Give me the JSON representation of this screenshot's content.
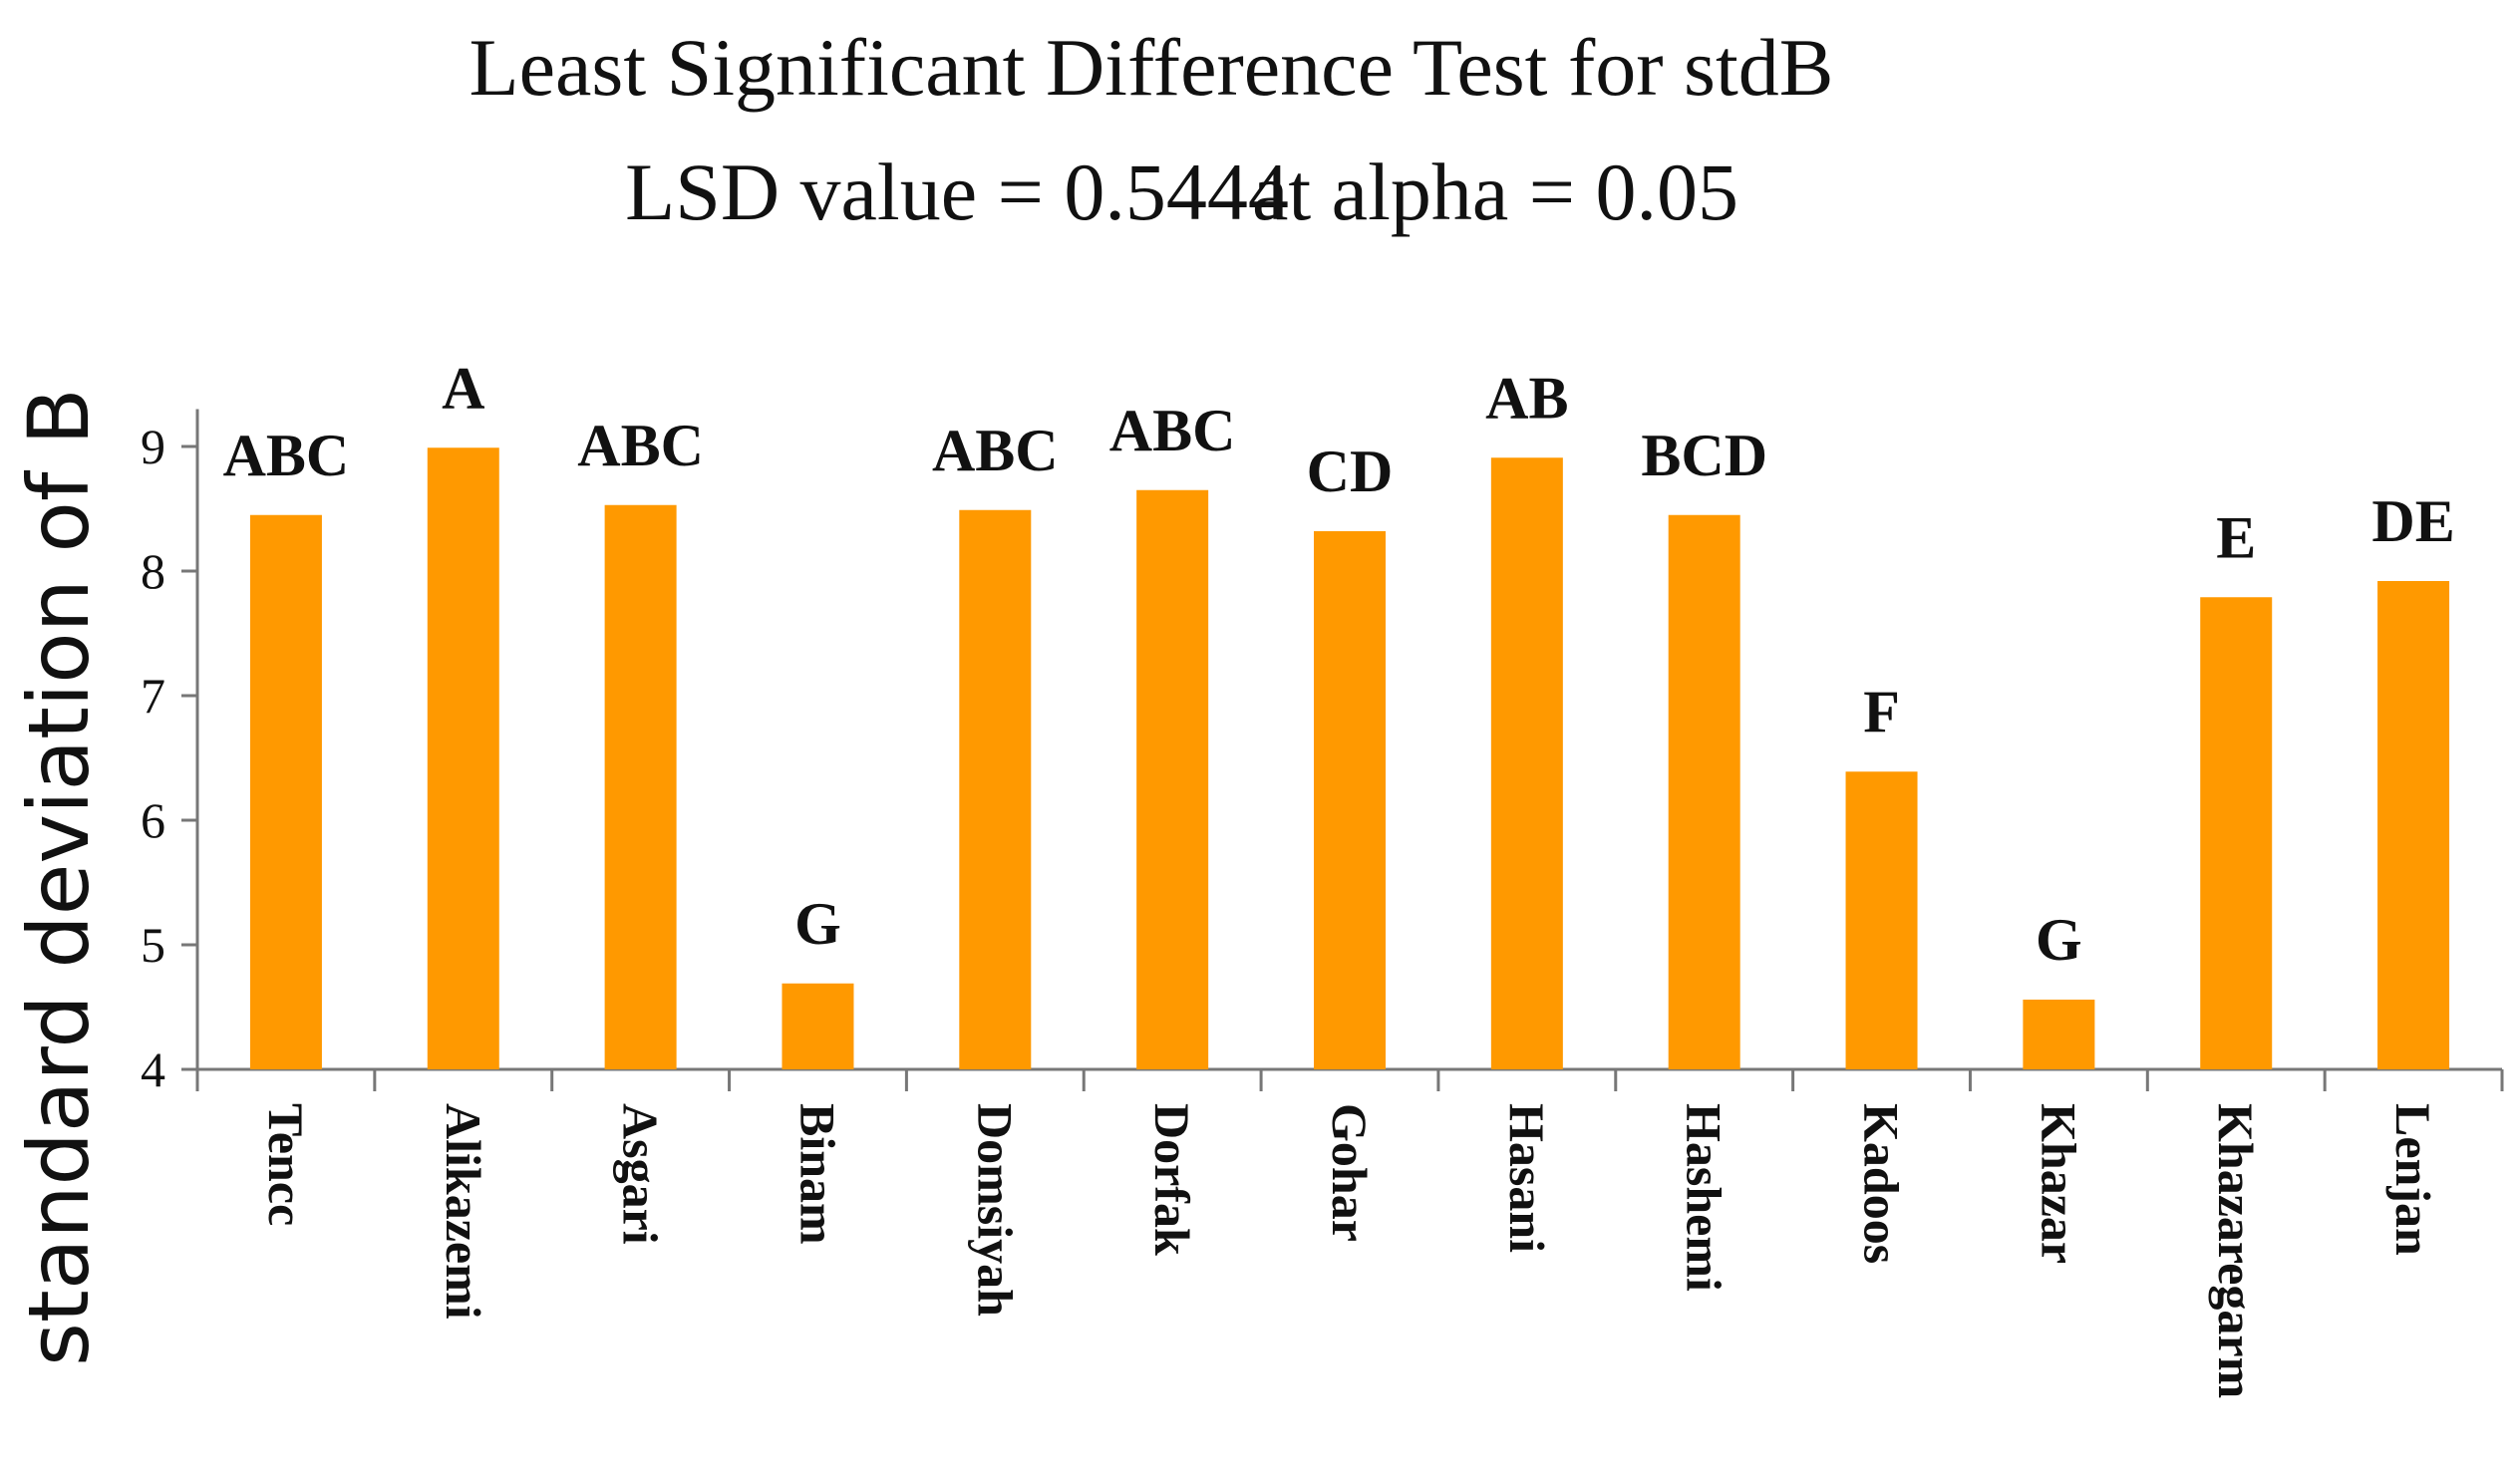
{
  "chart_data": {
    "type": "bar",
    "title": "Least Significant Difference Test for stdB",
    "subtitle_lsd": "LSD value = 0.5444",
    "subtitle_alpha": "at alpha = 0.05",
    "xlabel": "",
    "ylabel": "standard deviation of B",
    "ylim": [
      4,
      9.3
    ],
    "yticks": [
      4,
      5,
      6,
      7,
      8,
      9
    ],
    "grid": false,
    "bar_color": "#ff9900",
    "categories": [
      "Tencc",
      "Alikazemi",
      "Asgari",
      "Binam",
      "Domsiyah",
      "Dorfak",
      "Gohar",
      "Hasani",
      "Hashemi",
      "Kadoos",
      "Khazar",
      "Khazaregarm",
      "Lenjan"
    ],
    "values": [
      8.45,
      8.99,
      8.53,
      4.69,
      8.49,
      8.65,
      8.32,
      8.91,
      8.45,
      6.39,
      4.56,
      7.79,
      7.92
    ],
    "group_labels": [
      "ABC",
      "A",
      "ABC",
      "G",
      "ABC",
      "ABC",
      "CD",
      "AB",
      "BCD",
      "F",
      "G",
      "E",
      "DE"
    ]
  }
}
